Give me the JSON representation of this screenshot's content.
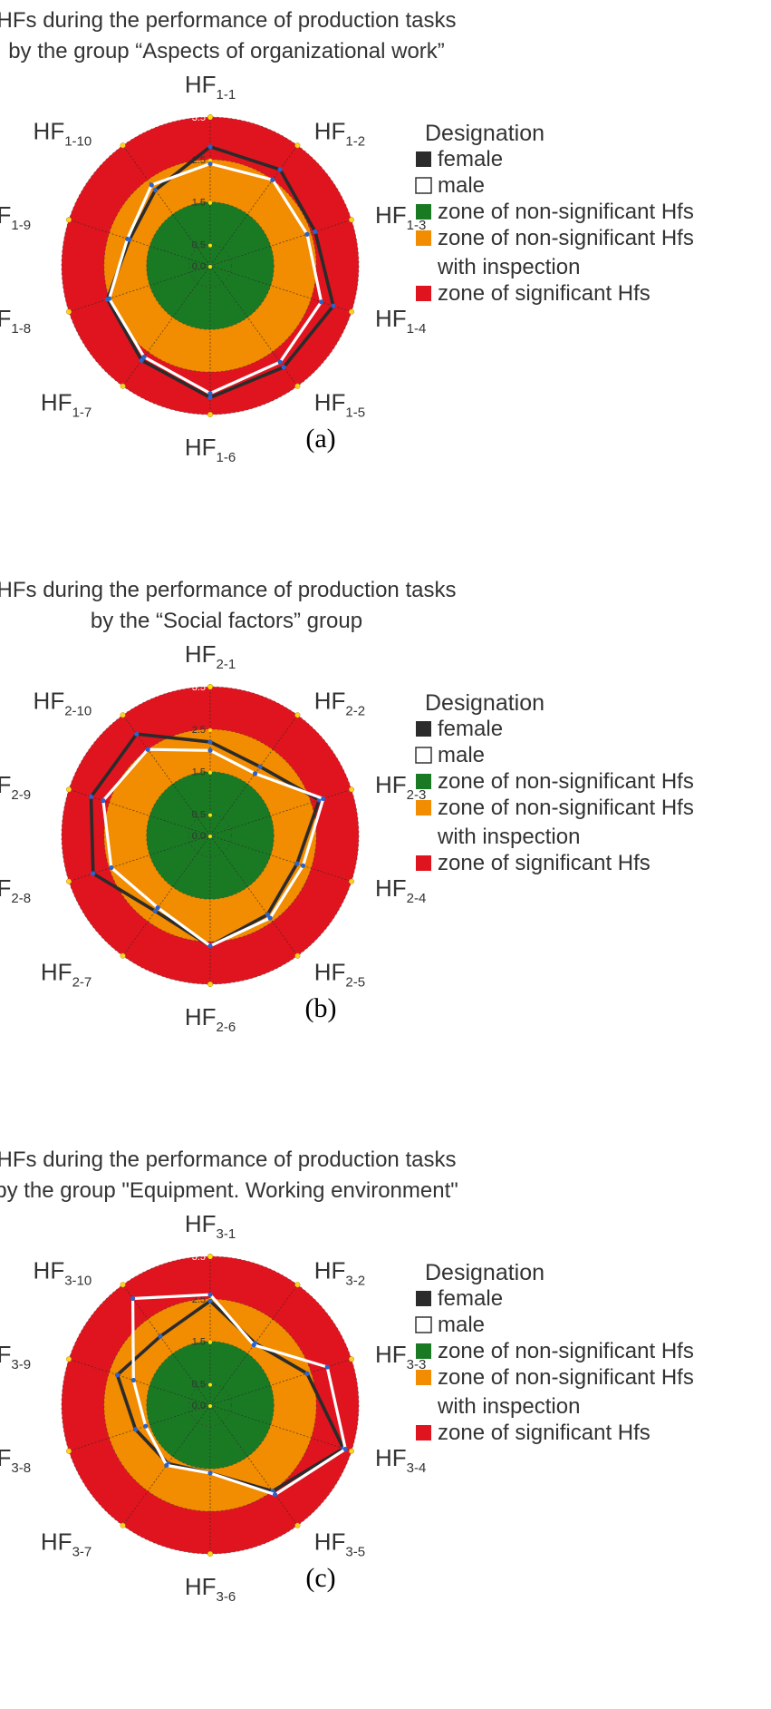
{
  "chart_data": [
    {
      "type": "radar",
      "title": [
        "HFs during the performance of production tasks",
        "by the group “Aspects of organizational work”"
      ],
      "axes": [
        {
          "main": "HF",
          "sub": "1-1"
        },
        {
          "main": "HF",
          "sub": "1-2"
        },
        {
          "main": "HF",
          "sub": "1-3"
        },
        {
          "main": "HF",
          "sub": "1-4"
        },
        {
          "main": "HF",
          "sub": "1-5"
        },
        {
          "main": "HF",
          "sub": "1-6"
        },
        {
          "main": "HF",
          "sub": "1-7"
        },
        {
          "main": "HF",
          "sub": "1-8"
        },
        {
          "main": "HF",
          "sub": "1-9"
        },
        {
          "main": "HF",
          "sub": "1-10"
        }
      ],
      "radial_ticks": [
        "3.5",
        "2.5",
        "1.5",
        "0.5",
        "0.0"
      ],
      "rlim": [
        0,
        3.5
      ],
      "zones": [
        {
          "name": "zone of non-significant Hfs",
          "from": 0,
          "to": 1.5,
          "color": "#1a7a24"
        },
        {
          "name": "zone of non-significant Hfs with inspection",
          "from": 1.5,
          "to": 2.5,
          "color": "#f28c00"
        },
        {
          "name": "zone of significant Hfs",
          "from": 2.5,
          "to": 3.5,
          "color": "#e0141e"
        }
      ],
      "series": [
        {
          "name": "female",
          "color": "#2b2b2b",
          "values": [
            2.8,
            2.8,
            2.6,
            3.05,
            2.95,
            3.1,
            2.75,
            2.55,
            2.0,
            2.2
          ]
        },
        {
          "name": "male",
          "color": "#ffffff",
          "values": [
            2.4,
            2.5,
            2.4,
            2.75,
            2.8,
            3.0,
            2.65,
            2.5,
            2.05,
            2.35
          ]
        }
      ],
      "legend": {
        "heading": "Designation",
        "items": [
          {
            "lines": [
              "female"
            ],
            "color": "#2b2b2b",
            "outline": false
          },
          {
            "lines": [
              "male"
            ],
            "color": "#ffffff",
            "outline": true
          },
          {
            "lines": [
              "zone of non-significant Hfs"
            ],
            "color": "#1a7a24",
            "outline": false
          },
          {
            "lines": [
              "zone of non-significant Hfs",
              "with inspection"
            ],
            "color": "#f28c00",
            "outline": false
          },
          {
            "lines": [
              "zone of significant Hfs"
            ],
            "color": "#e0141e",
            "outline": false
          }
        ]
      },
      "caption": "(a)"
    },
    {
      "type": "radar",
      "title": [
        "HFs during the performance of production tasks",
        "by the “Social factors” group"
      ],
      "axes": [
        {
          "main": "HF",
          "sub": "2-1"
        },
        {
          "main": "HF",
          "sub": "2-2"
        },
        {
          "main": "HF",
          "sub": "2-3"
        },
        {
          "main": "HF",
          "sub": "2-4"
        },
        {
          "main": "HF",
          "sub": "2-5"
        },
        {
          "main": "HF",
          "sub": "2-6"
        },
        {
          "main": "HF",
          "sub": "2-7"
        },
        {
          "main": "HF",
          "sub": "2-8"
        },
        {
          "main": "HF",
          "sub": "2-9"
        },
        {
          "main": "HF",
          "sub": "2-10"
        }
      ],
      "radial_ticks": [
        "3.5",
        "2.5",
        "1.5",
        "0.5",
        "0.0"
      ],
      "rlim": [
        0,
        3.5
      ],
      "zones": [
        {
          "name": "zone of non-significant Hfs",
          "from": 0,
          "to": 1.5,
          "color": "#1a7a24"
        },
        {
          "name": "zone of non-significant Hfs with inspection",
          "from": 1.5,
          "to": 2.5,
          "color": "#f28c00"
        },
        {
          "name": "zone of significant Hfs",
          "from": 2.5,
          "to": 3.5,
          "color": "#e0141e"
        }
      ],
      "series": [
        {
          "name": "female",
          "color": "#2b2b2b",
          "values": [
            2.2,
            2.0,
            2.7,
            2.15,
            2.3,
            2.6,
            2.2,
            2.9,
            2.95,
            2.95
          ]
        },
        {
          "name": "male",
          "color": "#ffffff",
          "values": [
            2.0,
            1.8,
            2.8,
            2.3,
            2.4,
            2.6,
            2.1,
            2.45,
            2.65,
            2.5
          ]
        }
      ],
      "legend": {
        "heading": "Designation",
        "items": [
          {
            "lines": [
              "female"
            ],
            "color": "#2b2b2b",
            "outline": false
          },
          {
            "lines": [
              "male"
            ],
            "color": "#ffffff",
            "outline": true
          },
          {
            "lines": [
              "zone of non-significant Hfs"
            ],
            "color": "#1a7a24",
            "outline": false
          },
          {
            "lines": [
              "zone of non-significant Hfs",
              "with inspection"
            ],
            "color": "#f28c00",
            "outline": false
          },
          {
            "lines": [
              "zone of significant Hfs"
            ],
            "color": "#e0141e",
            "outline": false
          }
        ]
      },
      "caption": "(b)"
    },
    {
      "type": "radar",
      "title": [
        "HFs during the performance of production tasks",
        "by the group \"Equipment. Working environment\""
      ],
      "axes": [
        {
          "main": "HF",
          "sub": "3-1"
        },
        {
          "main": "HF",
          "sub": "3-2"
        },
        {
          "main": "HF",
          "sub": "3-3"
        },
        {
          "main": "HF",
          "sub": "3-4"
        },
        {
          "main": "HF",
          "sub": "3-5"
        },
        {
          "main": "HF",
          "sub": "3-6"
        },
        {
          "main": "HF",
          "sub": "3-7"
        },
        {
          "main": "HF",
          "sub": "3-8"
        },
        {
          "main": "HF",
          "sub": "3-9"
        },
        {
          "main": "HF",
          "sub": "3-10"
        }
      ],
      "radial_ticks": [
        "3.5",
        "2.5",
        "1.5",
        "0.5",
        "0.0"
      ],
      "rlim": [
        0,
        3.5
      ],
      "zones": [
        {
          "name": "zone of non-significant Hfs",
          "from": 0,
          "to": 1.5,
          "color": "#1a7a24"
        },
        {
          "name": "zone of non-significant Hfs with inspection",
          "from": 1.5,
          "to": 2.5,
          "color": "#f28c00"
        },
        {
          "name": "zone of significant Hfs",
          "from": 2.5,
          "to": 3.5,
          "color": "#e0141e"
        }
      ],
      "series": [
        {
          "name": "female",
          "color": "#2b2b2b",
          "values": [
            2.45,
            1.8,
            2.4,
            3.3,
            2.5,
            1.6,
            1.7,
            1.85,
            2.3,
            2.0
          ]
        },
        {
          "name": "male",
          "color": "#ffffff",
          "values": [
            2.6,
            1.75,
            2.9,
            3.35,
            2.6,
            1.6,
            1.75,
            1.6,
            1.9,
            3.1
          ]
        }
      ],
      "legend": {
        "heading": "Designation",
        "items": [
          {
            "lines": [
              "female"
            ],
            "color": "#2b2b2b",
            "outline": false
          },
          {
            "lines": [
              "male"
            ],
            "color": "#ffffff",
            "outline": true
          },
          {
            "lines": [
              "zone of non-significant Hfs"
            ],
            "color": "#1a7a24",
            "outline": false
          },
          {
            "lines": [
              "zone of non-significant Hfs",
              "with inspection"
            ],
            "color": "#f28c00",
            "outline": false
          },
          {
            "lines": [
              "zone of significant Hfs"
            ],
            "color": "#e0141e",
            "outline": false
          }
        ]
      },
      "caption": "(c)"
    }
  ]
}
